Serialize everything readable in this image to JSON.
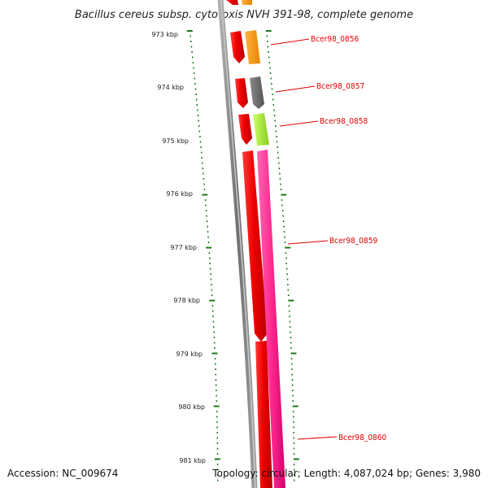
{
  "title": "Bacillus cereus subsp. cytotoxis NVH 391-98, complete genome",
  "footer": {
    "accession": "Accession: NC_009674",
    "topology": "Topology: circular; Length: 4,087,024 bp; Genes: 3,980"
  },
  "ruler": {
    "labels": [
      "973 kbp",
      "974 kbp",
      "975 kbp",
      "976 kbp",
      "977 kbp",
      "978 kbp",
      "979 kbp",
      "980 kbp",
      "981 kbp"
    ],
    "tick_color": "#1a7a1a"
  },
  "genes": [
    {
      "id": "Bcer98_0856",
      "label": "Bcer98_0856",
      "strand_color": "#ff9900"
    },
    {
      "id": "Bcer98_0857",
      "label": "Bcer98_0857",
      "strand_color": "#707070"
    },
    {
      "id": "Bcer98_0858",
      "label": "Bcer98_0858",
      "strand_color": "#aaee33"
    },
    {
      "id": "Bcer98_0859",
      "label": "Bcer98_0859",
      "strand_color": "#ff3399"
    },
    {
      "id": "Bcer98_0860",
      "label": "Bcer98_0860",
      "strand_color": "#ff3399"
    }
  ],
  "colors": {
    "backbone": "#808080",
    "cds": "#ff0000",
    "label_line": "#e00000"
  }
}
